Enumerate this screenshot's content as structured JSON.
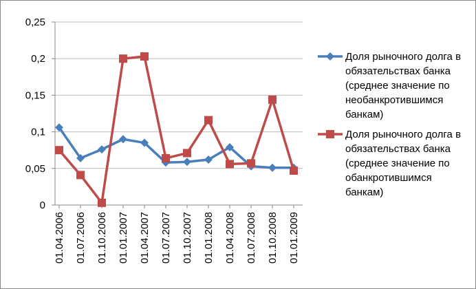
{
  "chart_data": {
    "type": "line",
    "categories": [
      "01.04.2006",
      "01.07.2006",
      "01.10.2006",
      "01.01.2007",
      "01.04.2007",
      "01.07.2007",
      "01.10.2007",
      "01.01.2008",
      "01.04.2008",
      "01.07.2008",
      "01.10.2008",
      "01.01.2009"
    ],
    "series": [
      {
        "name": "Доля рыночного долга в обязательствах банка (среднее значение по необанкротившимся банкам)",
        "color": "#4a7ebb",
        "marker": "diamond",
        "values": [
          0.106,
          0.064,
          0.076,
          0.09,
          0.085,
          0.058,
          0.059,
          0.062,
          0.079,
          0.053,
          0.051,
          0.051
        ]
      },
      {
        "name": "Доля рыночного долга в обязательствах банка (среднее значение по обанкротившимся банкам)",
        "color": "#be4b48",
        "marker": "square",
        "values": [
          0.075,
          0.041,
          0.003,
          0.2,
          0.203,
          0.064,
          0.071,
          0.116,
          0.056,
          0.057,
          0.144,
          0.047
        ]
      }
    ],
    "ylim": [
      0,
      0.25
    ],
    "yticks": [
      0,
      {
        "value": 0.05,
        "label": "0,05"
      },
      {
        "value": 0.1,
        "label": "0,1"
      },
      {
        "value": 0.15,
        "label": "0,15"
      },
      {
        "value": 0.2,
        "label": "0,2"
      },
      {
        "value": 0.25,
        "label": "0,25"
      }
    ],
    "grid": true,
    "legend": "right"
  }
}
